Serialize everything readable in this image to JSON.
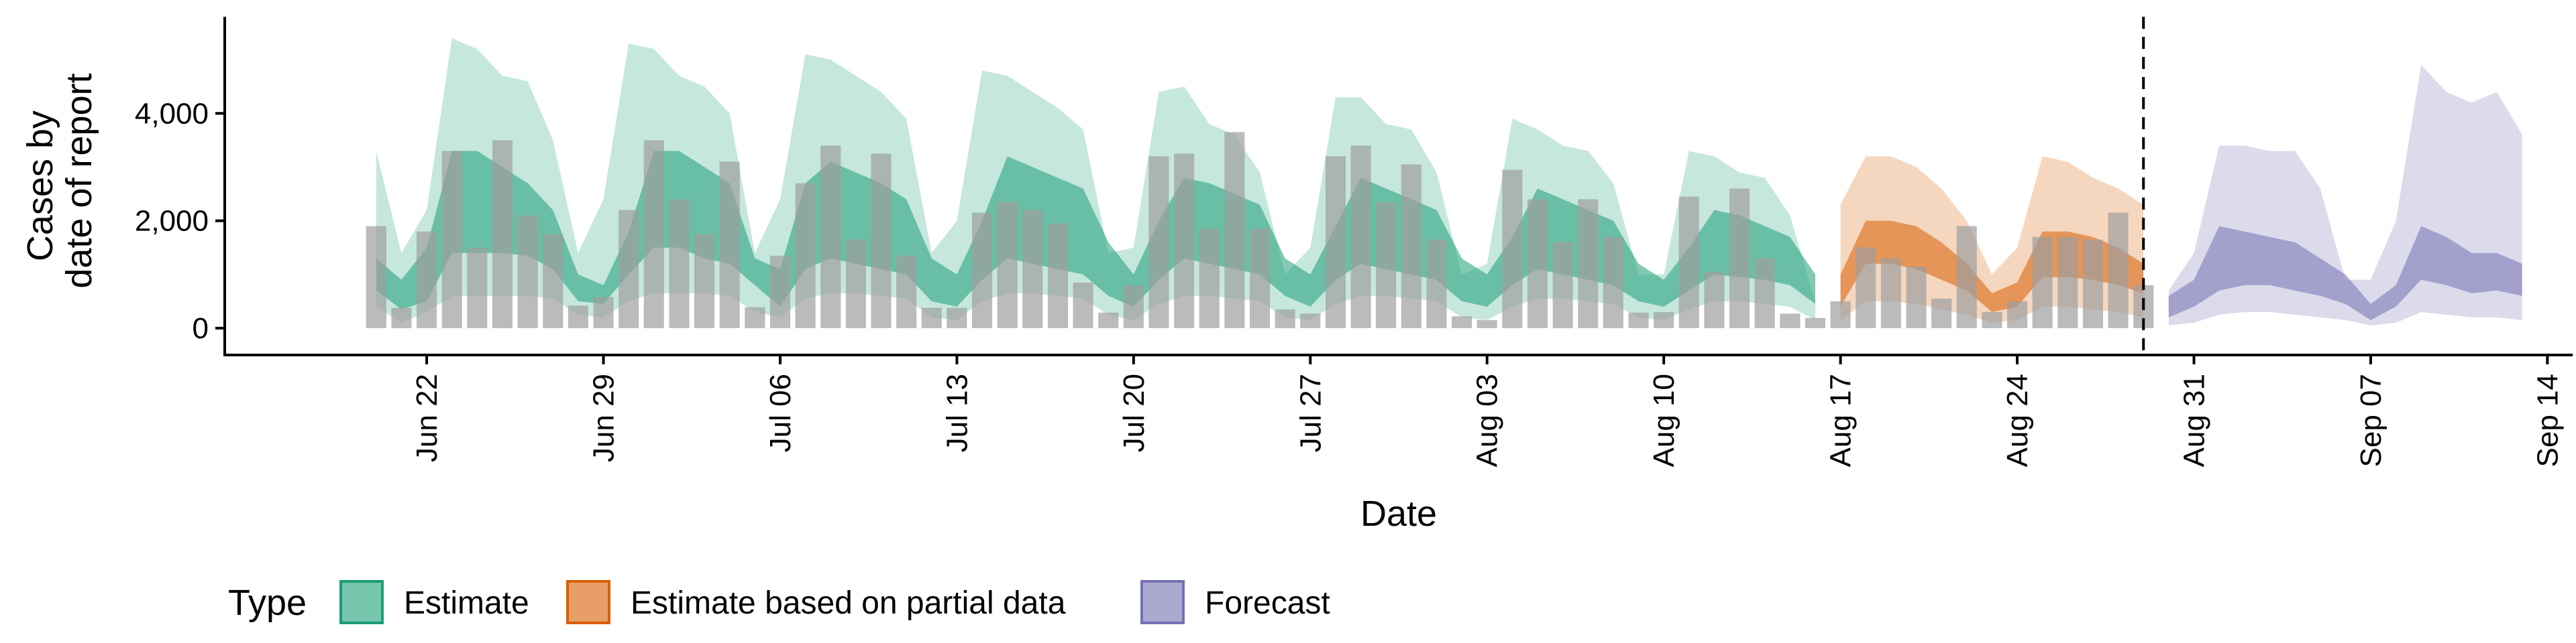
{
  "chart_data": {
    "type": "bar",
    "xlabel": "Date",
    "ylabel": [
      "Cases by",
      "date of report"
    ],
    "ylim": [
      -500,
      5800
    ],
    "y_ticks": [
      {
        "value": 0,
        "label": "0"
      },
      {
        "value": 2000,
        "label": "2,000"
      },
      {
        "value": 4000,
        "label": "4,000"
      }
    ],
    "x_ticks": [
      {
        "date": "2020-06-22",
        "label": "Jun 22"
      },
      {
        "date": "2020-06-29",
        "label": "Jun 29"
      },
      {
        "date": "2020-07-06",
        "label": "Jul 06"
      },
      {
        "date": "2020-07-13",
        "label": "Jul 13"
      },
      {
        "date": "2020-07-20",
        "label": "Jul 20"
      },
      {
        "date": "2020-07-27",
        "label": "Jul 27"
      },
      {
        "date": "2020-08-03",
        "label": "Aug 03"
      },
      {
        "date": "2020-08-10",
        "label": "Aug 10"
      },
      {
        "date": "2020-08-17",
        "label": "Aug 17"
      },
      {
        "date": "2020-08-24",
        "label": "Aug 24"
      },
      {
        "date": "2020-08-31",
        "label": "Aug 31"
      },
      {
        "date": "2020-09-07",
        "label": "Sep 07"
      },
      {
        "date": "2020-09-14",
        "label": "Sep 14"
      }
    ],
    "x_range": [
      "2020-06-14",
      "2020-09-15"
    ],
    "reference_line_date": "2020-08-29",
    "grid": false,
    "legend": {
      "title": "Type",
      "position": "bottom",
      "items": [
        {
          "key": "estimate",
          "label": "Estimate",
          "color": "#1B9E77"
        },
        {
          "key": "partial",
          "label": "Estimate based on partial data",
          "color": "#D95F02"
        },
        {
          "key": "forecast",
          "label": "Forecast",
          "color": "#7570B3"
        }
      ]
    },
    "colors": {
      "bars": "#9e9e9e"
    },
    "reported_cases": {
      "start_date": "2020-06-20",
      "values": [
        1900,
        380,
        1800,
        3300,
        1500,
        3500,
        2100,
        1750,
        420,
        580,
        2200,
        3500,
        2400,
        1750,
        3100,
        390,
        1350,
        2700,
        3400,
        1650,
        3250,
        1350,
        380,
        380,
        2150,
        2350,
        2200,
        1950,
        850,
        290,
        800,
        3200,
        3250,
        1850,
        3650,
        1850,
        350,
        270,
        3200,
        3400,
        2350,
        3050,
        1650,
        220,
        150,
        2950,
        2400,
        1600,
        2400,
        1700,
        290,
        300,
        2450,
        1050,
        2600,
        1300,
        270,
        190,
        500,
        1500,
        1300,
        1150,
        550,
        1900,
        300,
        500,
        1700,
        1700,
        1650,
        2150,
        800
      ]
    },
    "series": [
      {
        "name": "Estimate",
        "type": "estimate",
        "start_date": "2020-06-20",
        "median": [
          900,
          450,
          800,
          3000,
          1600,
          1500,
          1400,
          1200,
          900,
          600,
          1300,
          2900,
          2500,
          2300,
          2100,
          900,
          700,
          1900,
          2500,
          2000,
          1800,
          1600,
          900,
          800,
          1500,
          2400,
          2200,
          2000,
          1800,
          1100,
          700,
          1400,
          2300,
          2200,
          2000,
          1700,
          900,
          700,
          1300,
          2200,
          2100,
          1900,
          1700,
          900,
          700,
          1200,
          2000,
          1800,
          1600,
          1400,
          800,
          600,
          1000,
          1700,
          1600,
          1400,
          1200,
          700
        ],
        "lower_50": [
          700,
          350,
          500,
          1400,
          1400,
          1400,
          1350,
          1100,
          500,
          450,
          1000,
          1500,
          1500,
          1300,
          1200,
          800,
          400,
          1100,
          1300,
          1200,
          1100,
          1000,
          500,
          400,
          900,
          1300,
          1200,
          1100,
          1000,
          600,
          400,
          900,
          1300,
          1200,
          1100,
          1000,
          600,
          400,
          900,
          1200,
          1100,
          1000,
          900,
          500,
          400,
          800,
          1100,
          1000,
          900,
          800,
          500,
          400,
          700,
          1000,
          950,
          900,
          800,
          450
        ],
        "upper_50": [
          1300,
          900,
          1500,
          3300,
          3300,
          3000,
          2700,
          2200,
          1000,
          800,
          1800,
          3300,
          3300,
          3000,
          2700,
          1300,
          1100,
          2700,
          3100,
          2900,
          2700,
          2400,
          1300,
          1000,
          2000,
          3200,
          3000,
          2800,
          2600,
          1600,
          1000,
          2000,
          2800,
          2700,
          2500,
          2300,
          1300,
          1000,
          1900,
          2800,
          2600,
          2400,
          2200,
          1300,
          1000,
          1700,
          2600,
          2400,
          2200,
          2000,
          1200,
          900,
          1500,
          2200,
          2100,
          1900,
          1700,
          1000
        ],
        "lower_90": [
          400,
          100,
          300,
          600,
          600,
          600,
          600,
          550,
          250,
          200,
          500,
          650,
          650,
          650,
          600,
          300,
          200,
          550,
          650,
          650,
          600,
          550,
          200,
          150,
          500,
          650,
          650,
          600,
          550,
          250,
          150,
          450,
          600,
          600,
          550,
          500,
          200,
          150,
          450,
          600,
          600,
          550,
          500,
          200,
          150,
          400,
          550,
          550,
          500,
          450,
          200,
          150,
          350,
          500,
          500,
          450,
          400,
          150
        ],
        "upper_90": [
          3300,
          1400,
          2200,
          5400,
          5200,
          4700,
          4600,
          3500,
          1400,
          2400,
          5300,
          5200,
          4700,
          4500,
          4000,
          1400,
          2400,
          5100,
          5000,
          4700,
          4400,
          3900,
          1400,
          2000,
          4800,
          4700,
          4400,
          4100,
          3700,
          1400,
          1500,
          4400,
          4500,
          3800,
          3600,
          2900,
          1000,
          1500,
          4300,
          4300,
          3800,
          3700,
          2900,
          1000,
          1200,
          3900,
          3700,
          3400,
          3300,
          2700,
          1000,
          1000,
          3300,
          3200,
          2900,
          2800,
          2100,
          500
        ]
      },
      {
        "name": "Estimate based on partial data",
        "type": "partial",
        "start_date": "2020-08-17",
        "median": [
          700,
          1600,
          1600,
          1500,
          1200,
          900,
          450,
          600,
          1300,
          1300,
          1200,
          1100,
          900
        ],
        "lower_50": [
          400,
          1200,
          1200,
          1100,
          900,
          700,
          300,
          400,
          950,
          950,
          900,
          800,
          650
        ],
        "upper_50": [
          1000,
          2000,
          2000,
          1900,
          1600,
          1200,
          650,
          850,
          1800,
          1800,
          1700,
          1500,
          1200
        ],
        "lower_90": [
          150,
          500,
          500,
          450,
          350,
          250,
          100,
          150,
          400,
          400,
          350,
          300,
          200
        ],
        "upper_90": [
          2300,
          3200,
          3200,
          3000,
          2600,
          2000,
          1000,
          1500,
          3200,
          3100,
          2800,
          2600,
          2300
        ]
      },
      {
        "name": "Forecast",
        "type": "forecast",
        "start_date": "2020-08-30",
        "median": [
          400,
          600,
          1100,
          1300,
          1200,
          1100,
          900,
          700,
          300,
          600,
          1400,
          1300,
          1000,
          1100,
          900
        ],
        "lower_50": [
          200,
          400,
          700,
          800,
          800,
          700,
          600,
          450,
          150,
          400,
          900,
          800,
          650,
          700,
          600
        ],
        "upper_50": [
          600,
          900,
          1900,
          1800,
          1700,
          1600,
          1300,
          1000,
          450,
          800,
          1900,
          1700,
          1400,
          1400,
          1200
        ],
        "lower_90": [
          50,
          100,
          250,
          300,
          300,
          250,
          200,
          150,
          50,
          100,
          300,
          250,
          200,
          200,
          150
        ],
        "upper_90": [
          700,
          1400,
          3400,
          3400,
          3300,
          3300,
          2600,
          900,
          900,
          2000,
          4900,
          4400,
          4200,
          4400,
          3600
        ]
      }
    ]
  }
}
